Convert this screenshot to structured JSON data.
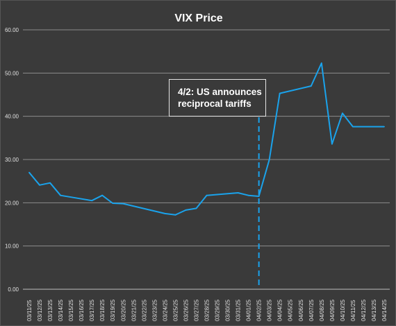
{
  "chart_data": {
    "type": "line",
    "title": "VIX Price",
    "xlabel": "",
    "ylabel": "",
    "ylim": [
      0,
      60
    ],
    "yticks": [
      "0.00",
      "10.00",
      "20.00",
      "30.00",
      "40.00",
      "50.00",
      "60.00"
    ],
    "grid": true,
    "legend": "none",
    "line_color": "#1aa3ec",
    "annotation": {
      "line1": "4/2: US announces",
      "line2": "reciprocal tariffs",
      "at_date": "04/02/25"
    },
    "x": [
      "03/11/25",
      "03/12/25",
      "03/13/25",
      "03/14/25",
      "03/15/25",
      "03/16/25",
      "03/17/25",
      "03/18/25",
      "03/19/25",
      "03/20/25",
      "03/21/25",
      "03/22/25",
      "03/23/25",
      "03/24/25",
      "03/25/25",
      "03/26/25",
      "03/27/25",
      "03/28/25",
      "03/29/25",
      "03/30/25",
      "03/31/25",
      "04/01/25",
      "04/02/25",
      "04/03/25",
      "04/04/25",
      "04/05/25",
      "04/06/25",
      "04/07/25",
      "04/08/25",
      "04/09/25",
      "04/10/25",
      "04/11/25",
      "04/12/25",
      "04/13/25",
      "04/14/25"
    ],
    "points": [
      {
        "x": "03/11/25",
        "y": 27.0
      },
      {
        "x": "03/12/25",
        "y": 24.1
      },
      {
        "x": "03/13/25",
        "y": 24.6
      },
      {
        "x": "03/14/25",
        "y": 21.7
      },
      {
        "x": "03/17/25",
        "y": 20.5
      },
      {
        "x": "03/18/25",
        "y": 21.7
      },
      {
        "x": "03/19/25",
        "y": 19.9
      },
      {
        "x": "03/20/25",
        "y": 19.8
      },
      {
        "x": "03/24/25",
        "y": 17.5
      },
      {
        "x": "03/25/25",
        "y": 17.2
      },
      {
        "x": "03/26/25",
        "y": 18.3
      },
      {
        "x": "03/27/25",
        "y": 18.7
      },
      {
        "x": "03/28/25",
        "y": 21.7
      },
      {
        "x": "03/31/25",
        "y": 22.3
      },
      {
        "x": "04/01/25",
        "y": 21.7
      },
      {
        "x": "04/02/25",
        "y": 21.5
      },
      {
        "x": "04/03/25",
        "y": 30.0
      },
      {
        "x": "04/04/25",
        "y": 45.3
      },
      {
        "x": "04/07/25",
        "y": 47.0
      },
      {
        "x": "04/08/25",
        "y": 52.3
      },
      {
        "x": "04/09/25",
        "y": 33.6
      },
      {
        "x": "04/10/25",
        "y": 40.7
      },
      {
        "x": "04/11/25",
        "y": 37.6
      },
      {
        "x": "04/14/25",
        "y": 37.6
      }
    ]
  }
}
